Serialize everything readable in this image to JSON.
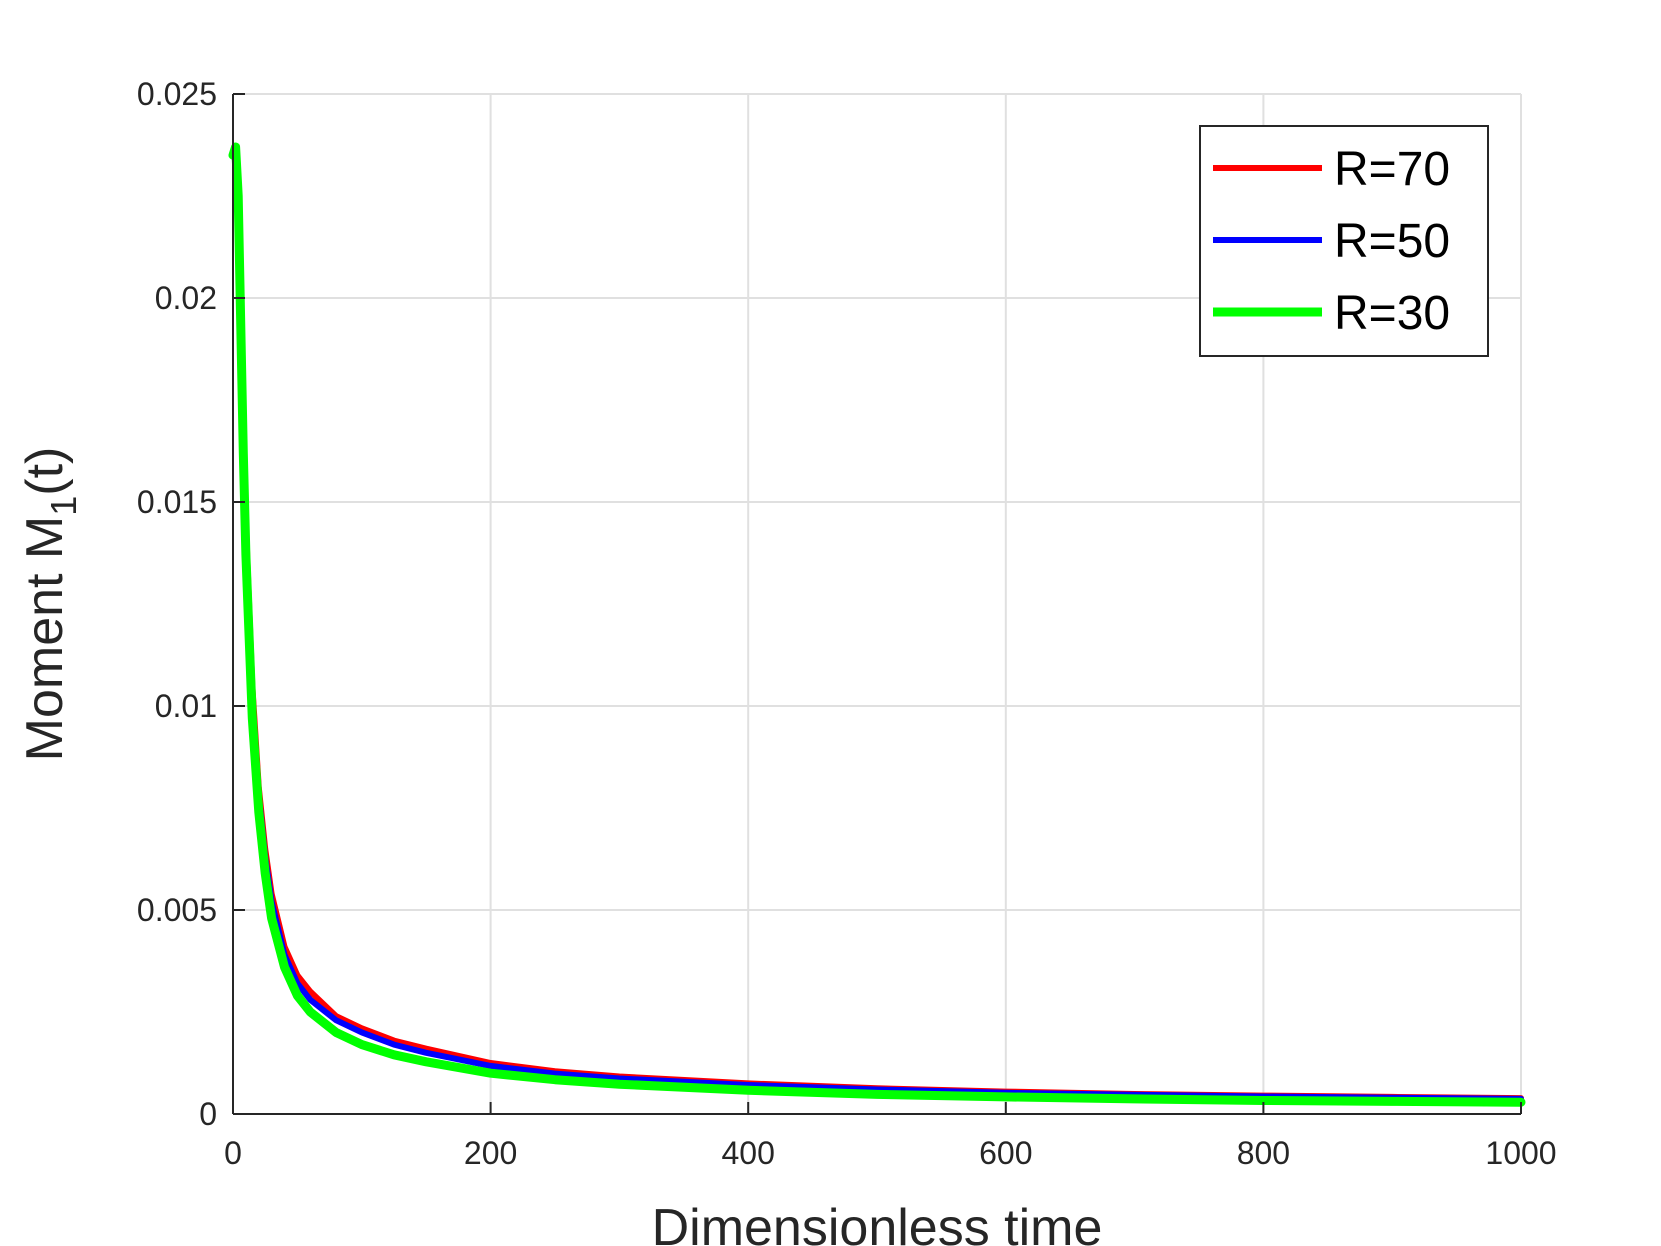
{
  "chart_data": {
    "type": "line",
    "title": "",
    "xlabel": "Dimensionless time",
    "ylabel": {
      "main": "Moment M",
      "sub": "1",
      "tail": "(t)"
    },
    "xlim": [
      0,
      1000
    ],
    "ylim": [
      0,
      0.025
    ],
    "grid": true,
    "legend_position": "top-right",
    "x_ticks": [
      "0",
      "200",
      "400",
      "600",
      "800",
      "1000"
    ],
    "y_ticks": [
      "0",
      "0.005",
      "0.01",
      "0.015",
      "0.02",
      "0.025"
    ],
    "x": [
      0,
      2,
      4,
      6,
      8,
      10,
      15,
      20,
      25,
      30,
      40,
      50,
      60,
      80,
      100,
      125,
      150,
      200,
      250,
      300,
      400,
      500,
      600,
      700,
      800,
      900,
      1000
    ],
    "series": [
      {
        "name": "R=70",
        "color": "#ff0000",
        "values": [
          0.0235,
          0.0237,
          0.0228,
          0.02,
          0.017,
          0.0145,
          0.0105,
          0.008,
          0.0065,
          0.0054,
          0.0041,
          0.0034,
          0.003,
          0.0024,
          0.0021,
          0.0018,
          0.0016,
          0.00125,
          0.00105,
          0.00092,
          0.00075,
          0.00063,
          0.00055,
          0.00049,
          0.00045,
          0.00042,
          0.00039
        ]
      },
      {
        "name": "R=50",
        "color": "#0000ff",
        "values": [
          0.0235,
          0.0237,
          0.0227,
          0.0198,
          0.0167,
          0.0142,
          0.0102,
          0.0078,
          0.0063,
          0.0052,
          0.0039,
          0.0032,
          0.0028,
          0.0023,
          0.002,
          0.0017,
          0.0015,
          0.00118,
          0.00099,
          0.00087,
          0.00071,
          0.0006,
          0.00052,
          0.00047,
          0.00043,
          0.0004,
          0.00037
        ]
      },
      {
        "name": "R=30",
        "color": "#00ff00",
        "values": [
          0.0235,
          0.0237,
          0.0225,
          0.0194,
          0.0162,
          0.0137,
          0.0097,
          0.0074,
          0.0059,
          0.0048,
          0.0036,
          0.0029,
          0.0025,
          0.002,
          0.0017,
          0.00145,
          0.00128,
          0.001,
          0.00084,
          0.00073,
          0.00058,
          0.00048,
          0.00042,
          0.00037,
          0.00033,
          0.00031,
          0.00029
        ]
      }
    ]
  }
}
